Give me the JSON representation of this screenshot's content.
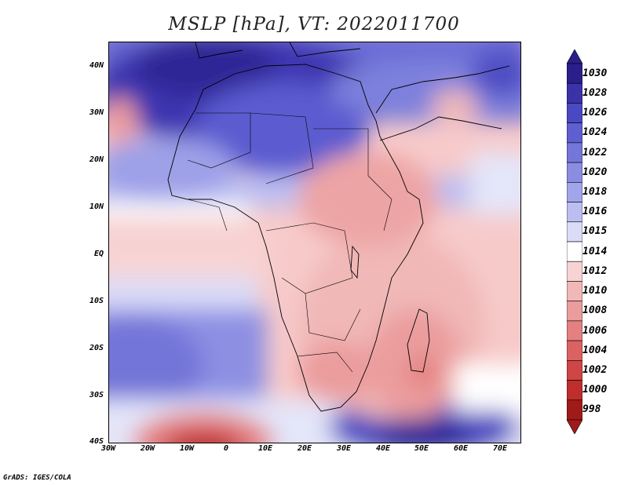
{
  "title": "MSLP [hPa], VT: 2022011700",
  "credit": "GrADS: IGES/COLA",
  "axes": {
    "lat_labels": [
      "40N",
      "30N",
      "20N",
      "10N",
      "EQ",
      "10S",
      "20S",
      "30S",
      "40S"
    ],
    "lon_labels": [
      "30W",
      "20W",
      "10W",
      "0",
      "10E",
      "20E",
      "30E",
      "40E",
      "50E",
      "60E",
      "70E"
    ]
  },
  "colorbar": {
    "labels": [
      "1030",
      "1028",
      "1026",
      "1024",
      "1022",
      "1020",
      "1018",
      "1016",
      "1015",
      "1014",
      "1012",
      "1010",
      "1008",
      "1006",
      "1004",
      "1002",
      "1000",
      "998"
    ],
    "colors": [
      "#2a1f8a",
      "#3a33a8",
      "#4a48c2",
      "#5e5fd0",
      "#7476da",
      "#8b8de2",
      "#a3a5ea",
      "#bcbef2",
      "#dadcf8",
      "#ffffff",
      "#f8d3d3",
      "#f1b8b8",
      "#eb9c9c",
      "#e48080",
      "#db6262",
      "#d04545",
      "#bf2d2d",
      "#a01a1a"
    ]
  },
  "chart_data": {
    "type": "heatmap",
    "title": "MSLP [hPa], VT: 2022011700",
    "variable": "MSLP",
    "units": "hPa",
    "valid_time": "2022011700",
    "lon_range": [
      -30,
      76
    ],
    "lat_range": [
      -40,
      45
    ],
    "levels": [
      998,
      1000,
      1002,
      1004,
      1006,
      1008,
      1010,
      1012,
      1014,
      1015,
      1016,
      1018,
      1020,
      1022,
      1024,
      1026,
      1028,
      1030
    ],
    "features": [
      {
        "label": "high",
        "lon": 0,
        "lat": 32,
        "value": 1030
      },
      {
        "label": "high",
        "lon": 45,
        "lat": -37,
        "value": 1026
      },
      {
        "label": "low",
        "lon": -7,
        "lat": -39,
        "value": 1000
      },
      {
        "label": "low",
        "lon": 48,
        "lat": -26,
        "value": 1006
      },
      {
        "label": "low",
        "lon": -28,
        "lat": 28,
        "value": 1010
      }
    ]
  }
}
